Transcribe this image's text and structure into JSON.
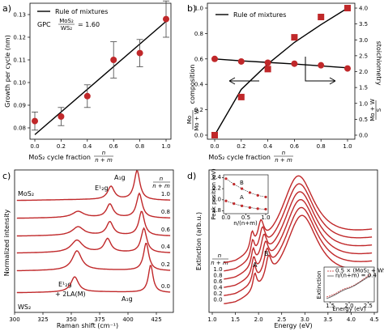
{
  "chart_data": [
    {
      "panel": "a)",
      "type": "scatter",
      "x": [
        0.0,
        0.2,
        0.4,
        0.6,
        0.8,
        1.0
      ],
      "y": [
        0.083,
        0.085,
        0.094,
        0.11,
        0.113,
        0.128
      ],
      "yerr": [
        0.004,
        0.004,
        0.005,
        0.008,
        0.006,
        0.008
      ],
      "fit_line": {
        "x": [
          0.0,
          1.0
        ],
        "y": [
          0.077,
          0.127
        ]
      },
      "xlabel": "MoS₂ cycle fraction",
      "xlabel_fraction": {
        "num": "n",
        "den": "n + m"
      },
      "ylabel": "Growth per cycle (nm)",
      "xlim": [
        0.0,
        1.0
      ],
      "ylim": [
        0.075,
        0.135
      ],
      "xticks": [
        "0.0",
        "0.2",
        "0.4",
        "0.6",
        "0.8",
        "1.0"
      ],
      "yticks": [
        "0.08",
        "0.09",
        "0.10",
        "0.11",
        "0.12",
        "0.13"
      ],
      "legend": {
        "line": "Rule of mixtures",
        "gpc_prefix": "GPC",
        "gpc_num": "MoS₂",
        "gpc_den": "WS₂",
        "gpc_value": "= 1.60"
      }
    },
    {
      "panel": "b)",
      "type": "scatter",
      "x": [
        0.0,
        0.2,
        0.4,
        0.6,
        0.8,
        1.0
      ],
      "composition": [
        0.0,
        0.3,
        0.52,
        0.77,
        0.93,
        1.0
      ],
      "composition_fit": [
        0.0,
        0.36,
        0.56,
        0.73,
        0.87,
        1.0
      ],
      "stoichiometry": [
        2.4,
        2.32,
        2.28,
        2.25,
        2.2,
        2.1
      ],
      "stoichiometry_fit": [
        2.4,
        2.34,
        2.29,
        2.24,
        2.18,
        2.12
      ],
      "legend": "Rule of mixtures",
      "xlabel": "MoS₂ cycle fraction",
      "xlabel_fraction": {
        "num": "n",
        "den": "n + m"
      },
      "ylabel_left": "composition",
      "ylabel_left_fraction": {
        "num": "Mo",
        "den": "Mo + W"
      },
      "ylabel_right": "stoichiometry",
      "ylabel_right_fraction": {
        "num": "S",
        "den": "Mo + W"
      },
      "xlim": [
        0.0,
        1.0
      ],
      "ylim_left": [
        0.0,
        1.0
      ],
      "ylim_right": [
        0.0,
        4.0
      ],
      "xticks": [
        "0.0",
        "0.2",
        "0.4",
        "0.6",
        "0.8",
        "1.0"
      ],
      "yticks_left": [
        "0.0",
        "0.2",
        "0.4",
        "0.6",
        "0.8",
        "1.0"
      ],
      "yticks_right": [
        "0.0",
        "0.5",
        "1.0",
        "1.5",
        "2.0",
        "2.5",
        "3.0",
        "3.5",
        "4.0"
      ]
    },
    {
      "panel": "c)",
      "type": "line",
      "xlabel": "Raman shift (cm⁻¹)",
      "ylabel": "Normalized intensity",
      "xlim": [
        300,
        440
      ],
      "xticks": [
        "300",
        "325",
        "350",
        "375",
        "400",
        "425"
      ],
      "series_header": {
        "num": "n",
        "den": "n + m"
      },
      "series": [
        {
          "name": "1.0",
          "peaks": [
            [
              385,
              0.45,
              3.5
            ],
            [
              408,
              1.0,
              3.0
            ]
          ]
        },
        {
          "name": "0.8",
          "peaks": [
            [
              356,
              0.25,
              6
            ],
            [
              384,
              0.55,
              3.5
            ],
            [
              410,
              1.0,
              3.0
            ]
          ]
        },
        {
          "name": "0.6",
          "peaks": [
            [
              356,
              0.35,
              6
            ],
            [
              384,
              0.55,
              3.5
            ],
            [
              412,
              1.0,
              3.0
            ]
          ]
        },
        {
          "name": "0.4",
          "peaks": [
            [
              355,
              0.5,
              6
            ],
            [
              382,
              0.55,
              3.5
            ],
            [
              414,
              1.0,
              3.0
            ]
          ]
        },
        {
          "name": "0.2",
          "peaks": [
            [
              355,
              0.7,
              5
            ],
            [
              355,
              0.0,
              1
            ],
            [
              416,
              1.0,
              2.8
            ]
          ]
        },
        {
          "name": "0.0",
          "peaks": [
            [
              353,
              0.55,
              4
            ],
            [
              420,
              1.0,
              2.5
            ]
          ]
        }
      ],
      "annotations": {
        "top_left": "MoS₂",
        "bottom_left": "WS₂",
        "e2g_top": "E¹₂g",
        "a1g_top": "A₁g",
        "e2g_bottom_line1": "E¹₂g",
        "e2g_bottom_line2": "+ 2LA(M)",
        "a1g_bottom": "A₁g"
      }
    },
    {
      "panel": "d)",
      "type": "line",
      "xlabel": "Energy (eV)",
      "ylabel": "Extinction (arb.u.)",
      "xlim": [
        1.0,
        4.5
      ],
      "xticks": [
        "1.0",
        "1.5",
        "2.0",
        "2.5",
        "3.0",
        "3.5",
        "4.0",
        "4.5"
      ],
      "series_header": {
        "num": "n",
        "den": "n + m"
      },
      "series_names": [
        "1.0",
        "0.8",
        "0.6",
        "0.4",
        "0.2",
        "0.0"
      ],
      "peak_labels": {
        "A": "A",
        "B": "B"
      },
      "inset_peak": {
        "xlabel": "n/(n+m)",
        "ylabel": "Peak position (eV)",
        "xticks": [
          "0.0",
          "0.5",
          "1.0"
        ],
        "yticks": [
          "1.8",
          "2.0",
          "2.2",
          "2.4"
        ],
        "B": [
          2.38,
          2.28,
          2.2,
          2.13,
          2.08,
          2.05
        ],
        "A": [
          1.98,
          1.93,
          1.89,
          1.86,
          1.84,
          1.83
        ]
      },
      "inset_extinction": {
        "xlabel": "Energy (eV)",
        "ylabel": "Extinction",
        "xticks": [
          "1.5",
          "2.0",
          "2.5"
        ],
        "legend": [
          "0.5 × (MoS₂ + WS₂)",
          "n/(n+m) = 0.4"
        ]
      }
    }
  ]
}
